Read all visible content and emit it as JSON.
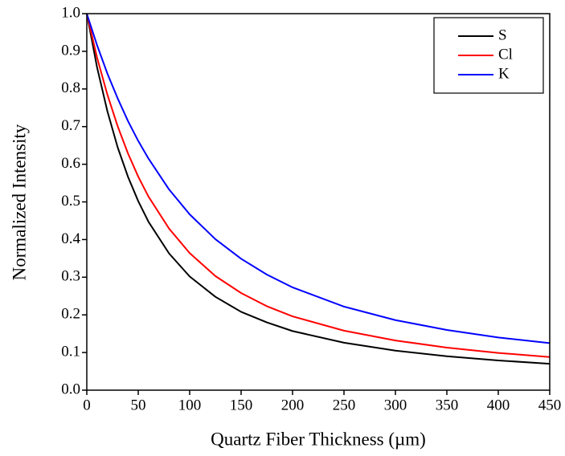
{
  "chart_data": {
    "type": "line",
    "xlabel": "Quartz Fiber Thickness (µm)",
    "ylabel": "Normalized Intensity",
    "x": [
      0,
      10,
      20,
      30,
      40,
      50,
      60,
      80,
      100,
      125,
      150,
      175,
      200,
      250,
      300,
      350,
      400,
      450
    ],
    "series": [
      {
        "name": "S",
        "color": "#000000",
        "values": [
          1.0,
          0.857,
          0.741,
          0.645,
          0.567,
          0.502,
          0.447,
          0.363,
          0.302,
          0.248,
          0.208,
          0.18,
          0.157,
          0.126,
          0.105,
          0.09,
          0.079,
          0.07
        ]
      },
      {
        "name": "Cl",
        "color": "#ff0000",
        "values": [
          1.0,
          0.883,
          0.785,
          0.701,
          0.629,
          0.567,
          0.514,
          0.429,
          0.364,
          0.303,
          0.258,
          0.223,
          0.196,
          0.158,
          0.132,
          0.113,
          0.099,
          0.088
        ]
      },
      {
        "name": "K",
        "color": "#0000ff",
        "values": [
          1.0,
          0.916,
          0.841,
          0.775,
          0.715,
          0.662,
          0.615,
          0.533,
          0.467,
          0.401,
          0.349,
          0.307,
          0.273,
          0.222,
          0.186,
          0.16,
          0.14,
          0.125
        ]
      }
    ],
    "xlim": [
      0,
      450
    ],
    "xticks": [
      0,
      50,
      100,
      150,
      200,
      250,
      300,
      350,
      400,
      450
    ],
    "ylim": [
      0,
      1
    ],
    "yticks": [
      {
        "value": 0,
        "label": "0.0"
      },
      0.1,
      0.2,
      0.3,
      0.4,
      0.5,
      0.6,
      0.7,
      0.8,
      0.9,
      {
        "value": 1,
        "label": "1.0"
      }
    ],
    "grid": false,
    "legend": "upper right"
  }
}
